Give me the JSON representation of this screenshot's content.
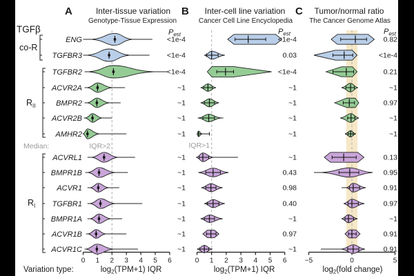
{
  "colors": {
    "background": "#ffffff",
    "letterbox": "#000000",
    "stroke": "#202020",
    "marker": "#111111",
    "gray_text": "#9b9b9b",
    "dark_text": "#1a1a1a",
    "guide_dash": "#b5b5b5",
    "band_fill": "#f6e7c4"
  },
  "chart_data": {
    "type": "violin",
    "orientation": "horizontal",
    "family": "TGFβ",
    "labels": {
      "median": "Median:",
      "variation_type": "Variation type:"
    },
    "panels": [
      {
        "id": "A",
        "letter": "A",
        "title": "Inter-tissue variation",
        "subtitle": "Genotype-Tissue Expression",
        "xlabel": "log2(TPM+1) IQR",
        "xlabel_parts": {
          "pre": "log",
          "sub": "2",
          "post": "(TPM+1) IQR"
        },
        "xlim": [
          0,
          6
        ],
        "ticks": [
          0,
          1,
          2,
          3,
          4,
          5,
          6
        ],
        "guide": {
          "value": 2,
          "label": "IQR>2"
        },
        "pest_label": {
          "pre": "P",
          "sub": "est"
        }
      },
      {
        "id": "B",
        "letter": "B",
        "title": "Inter-cell line variation",
        "subtitle": "Cancer Cell Line Encyclopedia",
        "xlabel": "log2(TPM+1) IQR",
        "xlabel_parts": {
          "pre": "log",
          "sub": "2",
          "post": "(TPM+1) IQR"
        },
        "xlim": [
          0,
          6
        ],
        "ticks": [
          0,
          1,
          2,
          3,
          4,
          5,
          6
        ],
        "guide": {
          "value": 1,
          "label": "IQR>1"
        },
        "pest_label": {
          "pre": "P",
          "sub": "est"
        }
      },
      {
        "id": "C",
        "letter": "C",
        "title": "Tumor/normal ratio",
        "subtitle": "The Cancer Genome Atlas",
        "xlabel": "log2(fold change)",
        "xlabel_parts": {
          "pre": "log",
          "sub": "2",
          "post": "(fold change)"
        },
        "xlim": [
          -5,
          5
        ],
        "ticks": [
          -5,
          0,
          5
        ],
        "guide": {
          "value": 0,
          "label": ""
        },
        "band": {
          "center": 0,
          "half_width": 0.65
        },
        "pest_label": {
          "pre": "P",
          "sub": "est"
        }
      }
    ],
    "groups": [
      {
        "id": "co-R",
        "label": "co-R",
        "label_parts": {
          "pre": "co-R",
          "sub": ""
        },
        "color": "#5f97dd",
        "fill": "#b9cee8",
        "genes": [
          "ENG",
          "TGFBR3"
        ]
      },
      {
        "id": "RII",
        "label": "RII",
        "label_parts": {
          "pre": "R",
          "sub": "II"
        },
        "color": "#42a152",
        "fill": "#95cc95",
        "genes": [
          "TGFBR2",
          "ACVR2A",
          "BMPR2",
          "ACVR2B",
          "AMHR2"
        ]
      },
      {
        "id": "RI",
        "label": "RI",
        "label_parts": {
          "pre": "R",
          "sub": "I"
        },
        "color": "#9d5fc4",
        "fill": "#c9a5d9",
        "genes": [
          "ACVRL1",
          "BMPR1B",
          "ACVR1",
          "TGFBR1",
          "BMPR1A",
          "ACVR1B",
          "ACVR1C"
        ]
      }
    ],
    "rows": [
      {
        "gene": "ENG",
        "group": "co-R",
        "A": {
          "p": "<1e-4",
          "median": 2.2,
          "bulge": [
            0.6,
            3.4
          ],
          "tails": [
            0.0,
            4.8
          ],
          "w": 0.95,
          "shape": "kde"
        },
        "B": {
          "p": "<1e-4",
          "median": 3.5,
          "bulge": [
            2.1,
            5.8
          ],
          "whisker": [
            2.6,
            4.7
          ],
          "w": 0.8,
          "shape": "flat"
        },
        "C": {
          "p": "0.82",
          "median": 0.4,
          "bulge": [
            -2.4,
            2.6
          ],
          "whisker": [
            -1.3,
            1.7
          ],
          "w": 0.8,
          "shape": "flat"
        }
      },
      {
        "gene": "TGFBR3",
        "group": "co-R",
        "A": {
          "p": "<1e-4",
          "median": 1.8,
          "bulge": [
            0.3,
            3.2
          ],
          "tails": [
            0.0,
            4.6
          ],
          "w": 1.0,
          "shape": "kde"
        },
        "B": {
          "p": "0.03",
          "median": 1.0,
          "bulge": [
            0.5,
            1.9
          ],
          "whisker": [
            0.65,
            1.45
          ],
          "w": 0.65,
          "shape": "kde"
        },
        "C": {
          "p": "<1e-4",
          "median": -0.9,
          "bulge": [
            -4.4,
            0.6
          ],
          "whisker": [
            -2.2,
            0.1
          ],
          "w": 0.8,
          "shape": "flatL"
        }
      },
      {
        "gene": "TGFBR2",
        "group": "RII",
        "A": {
          "p": "<1e-4",
          "median": 2.1,
          "bulge": [
            0.4,
            4.9
          ],
          "tails": [
            0.1,
            5.9
          ],
          "w": 1.0,
          "shape": "kde"
        },
        "B": {
          "p": "<1e-4",
          "median": 1.95,
          "bulge": [
            0.7,
            5.1
          ],
          "whisker": [
            1.35,
            2.5
          ],
          "w": 0.85,
          "shape": "flatR"
        },
        "C": {
          "p": "0.21",
          "median": -0.65,
          "bulge": [
            -3.0,
            0.6
          ],
          "whisker": [
            -2.2,
            0.2
          ],
          "w": 0.8,
          "shape": "flatL"
        }
      },
      {
        "gene": "ACVR2A",
        "group": "RII",
        "A": {
          "p": "~1",
          "median": 1.0,
          "bulge": [
            0.3,
            2.0
          ],
          "tails": [
            0.1,
            2.9
          ],
          "w": 0.75,
          "shape": "kde"
        },
        "B": {
          "p": "~1",
          "median": 0.75,
          "bulge": [
            0.25,
            1.3
          ],
          "whisker": [
            0.45,
            1.05
          ],
          "w": 0.6,
          "shape": "kde"
        },
        "C": {
          "p": "~1",
          "median": -0.15,
          "bulge": [
            -1.2,
            0.7
          ],
          "whisker": [
            -0.7,
            0.3
          ],
          "w": 0.7,
          "shape": "kde"
        }
      },
      {
        "gene": "BMPR2",
        "group": "RII",
        "A": {
          "p": "~1",
          "median": 0.95,
          "bulge": [
            0.3,
            1.8
          ],
          "tails": [
            0.1,
            2.6
          ],
          "w": 0.75,
          "shape": "kde"
        },
        "B": {
          "p": "~1",
          "median": 0.85,
          "bulge": [
            0.25,
            1.5
          ],
          "whisker": [
            0.5,
            1.2
          ],
          "w": 0.65,
          "shape": "kde"
        },
        "C": {
          "p": "0.97",
          "median": -0.3,
          "bulge": [
            -2.0,
            0.8
          ],
          "whisker": [
            -1.0,
            0.3
          ],
          "w": 0.75,
          "shape": "flatL"
        }
      },
      {
        "gene": "ACVR2B",
        "group": "RII",
        "A": {
          "p": "~1",
          "median": 0.65,
          "bulge": [
            0.15,
            1.3
          ],
          "tails": [
            0.05,
            2.0
          ],
          "w": 0.7,
          "shape": "kde"
        },
        "B": {
          "p": "~1",
          "median": 0.8,
          "bulge": [
            0.1,
            1.65
          ],
          "tails": [
            0.05,
            1.8
          ],
          "whisker": [
            0.4,
            1.2
          ],
          "w": 0.6,
          "shape": "kde"
        },
        "C": {
          "p": "~1",
          "median": -0.1,
          "bulge": [
            -1.35,
            0.8
          ],
          "whisker": [
            -0.5,
            0.35
          ],
          "w": 0.7,
          "shape": "kde"
        }
      },
      {
        "gene": "AMHR2",
        "group": "RII",
        "A": {
          "p": "~1",
          "median": 0.3,
          "bulge": [
            0.0,
            1.1
          ],
          "tails": [
            0.0,
            3.0
          ],
          "w": 0.8,
          "shape": "kde"
        },
        "B": {
          "p": "~1",
          "median": 0.1,
          "bulge": [
            0.0,
            0.35
          ],
          "whisker": [
            0.1,
            0.85
          ],
          "w": 0.45,
          "shape": "kde"
        },
        "C": {
          "p": "~1",
          "median": -0.15,
          "bulge": [
            -0.8,
            0.45
          ],
          "whisker": [
            -0.45,
            0.15
          ],
          "w": 0.5,
          "shape": "kde"
        }
      },
      {
        "gene": "ACVRL1",
        "group": "RI",
        "A": {
          "p": "~1",
          "median": 1.45,
          "bulge": [
            0.6,
            2.4
          ],
          "tails": [
            0.3,
            3.6
          ],
          "w": 0.8,
          "shape": "kde"
        },
        "B": {
          "p": "~1",
          "median": 0.4,
          "bulge": [
            -0.05,
            1.1
          ],
          "tails": [
            0.0,
            2.8
          ],
          "whisker": [
            0.15,
            0.8
          ],
          "w": 0.7,
          "shape": "kde"
        },
        "C": {
          "p": "0.13",
          "median": -0.95,
          "bulge": [
            -3.2,
            1.4
          ],
          "whisker": [
            -2.3,
            0.5
          ],
          "w": 0.8,
          "shape": "flat"
        }
      },
      {
        "gene": "BMPR1B",
        "group": "RI",
        "A": {
          "p": "~1",
          "median": 1.1,
          "bulge": [
            0.35,
            2.2
          ],
          "tails": [
            0.15,
            3.1
          ],
          "w": 0.8,
          "shape": "kde"
        },
        "B": {
          "p": "0.43",
          "median": 1.1,
          "bulge": [
            0.1,
            2.15
          ],
          "whisker": [
            0.6,
            1.6
          ],
          "w": 0.7,
          "shape": "kde"
        },
        "C": {
          "p": "0.95",
          "median": -0.25,
          "bulge": [
            -3.5,
            2.4
          ],
          "tails": [
            -4.4,
            2.4
          ],
          "whisker": [
            -1.5,
            0.8
          ],
          "w": 0.75,
          "shape": "kde"
        }
      },
      {
        "gene": "ACVR1",
        "group": "RI",
        "A": {
          "p": "~1",
          "median": 1.05,
          "bulge": [
            0.5,
            1.75
          ],
          "tails": [
            0.3,
            2.5
          ],
          "w": 0.7,
          "shape": "kde"
        },
        "B": {
          "p": "0.98",
          "median": 0.95,
          "bulge": [
            0.3,
            1.75
          ],
          "whisker": [
            0.6,
            1.3
          ],
          "w": 0.65,
          "shape": "kde"
        },
        "C": {
          "p": "0.91",
          "median": 0.15,
          "bulge": [
            -0.65,
            1.6
          ],
          "tails": [
            -1.2,
            1.6
          ],
          "whisker": [
            -0.3,
            0.9
          ],
          "w": 0.7,
          "shape": "kde"
        }
      },
      {
        "gene": "TGFBR1",
        "group": "RI",
        "A": {
          "p": "~1",
          "median": 1.2,
          "bulge": [
            0.5,
            2.2
          ],
          "tails": [
            0.3,
            4.1
          ],
          "w": 0.8,
          "shape": "kde"
        },
        "B": {
          "p": "0.40",
          "median": 1.1,
          "bulge": [
            0.5,
            1.9
          ],
          "whisker": [
            0.7,
            1.5
          ],
          "w": 0.65,
          "shape": "kde"
        },
        "C": {
          "p": "0.97",
          "median": 0.0,
          "bulge": [
            -0.95,
            1.45
          ],
          "whisker": [
            -0.45,
            0.75
          ],
          "w": 0.7,
          "shape": "kde"
        }
      },
      {
        "gene": "BMPR1A",
        "group": "RI",
        "A": {
          "p": "~1",
          "median": 1.1,
          "bulge": [
            0.5,
            1.9
          ],
          "tails": [
            0.3,
            2.7
          ],
          "w": 0.75,
          "shape": "kde"
        },
        "B": {
          "p": "~1",
          "median": 0.85,
          "bulge": [
            0.25,
            1.75
          ],
          "whisker": [
            0.5,
            1.2
          ],
          "w": 0.6,
          "shape": "kde"
        },
        "C": {
          "p": "~1",
          "median": -0.4,
          "bulge": [
            -1.2,
            0.65
          ],
          "whisker": [
            -0.8,
            0.2
          ],
          "w": 0.65,
          "shape": "kde"
        }
      },
      {
        "gene": "ACVR1B",
        "group": "RI",
        "A": {
          "p": "~1",
          "median": 0.9,
          "bulge": [
            0.35,
            1.55
          ],
          "tails": [
            0.2,
            3.0
          ],
          "w": 0.7,
          "shape": "kde"
        },
        "B": {
          "p": "0.97",
          "median": 0.95,
          "bulge": [
            0.4,
            1.5
          ],
          "whisker": [
            0.65,
            1.3
          ],
          "w": 0.6,
          "shape": "flat"
        },
        "C": {
          "p": "0.91",
          "median": 0.0,
          "bulge": [
            -0.8,
            0.95
          ],
          "whisker": [
            -0.4,
            0.5
          ],
          "w": 0.65,
          "shape": "flat"
        }
      },
      {
        "gene": "ACVR1C",
        "group": "RI",
        "A": {
          "p": "~1",
          "median": 0.95,
          "bulge": [
            0.2,
            2.1
          ],
          "tails": [
            0.1,
            3.8
          ],
          "w": 0.8,
          "shape": "kde"
        },
        "B": {
          "p": "~1",
          "median": 0.5,
          "bulge": [
            0.0,
            1.05
          ],
          "whisker": [
            0.2,
            0.8
          ],
          "w": 0.6,
          "shape": "kde"
        },
        "C": {
          "p": "0.91",
          "median": 0.15,
          "bulge": [
            -1.2,
            1.5
          ],
          "tails": [
            -3.6,
            1.5
          ],
          "whisker": [
            -0.5,
            0.8
          ],
          "w": 0.7,
          "shape": "kde"
        }
      }
    ]
  }
}
